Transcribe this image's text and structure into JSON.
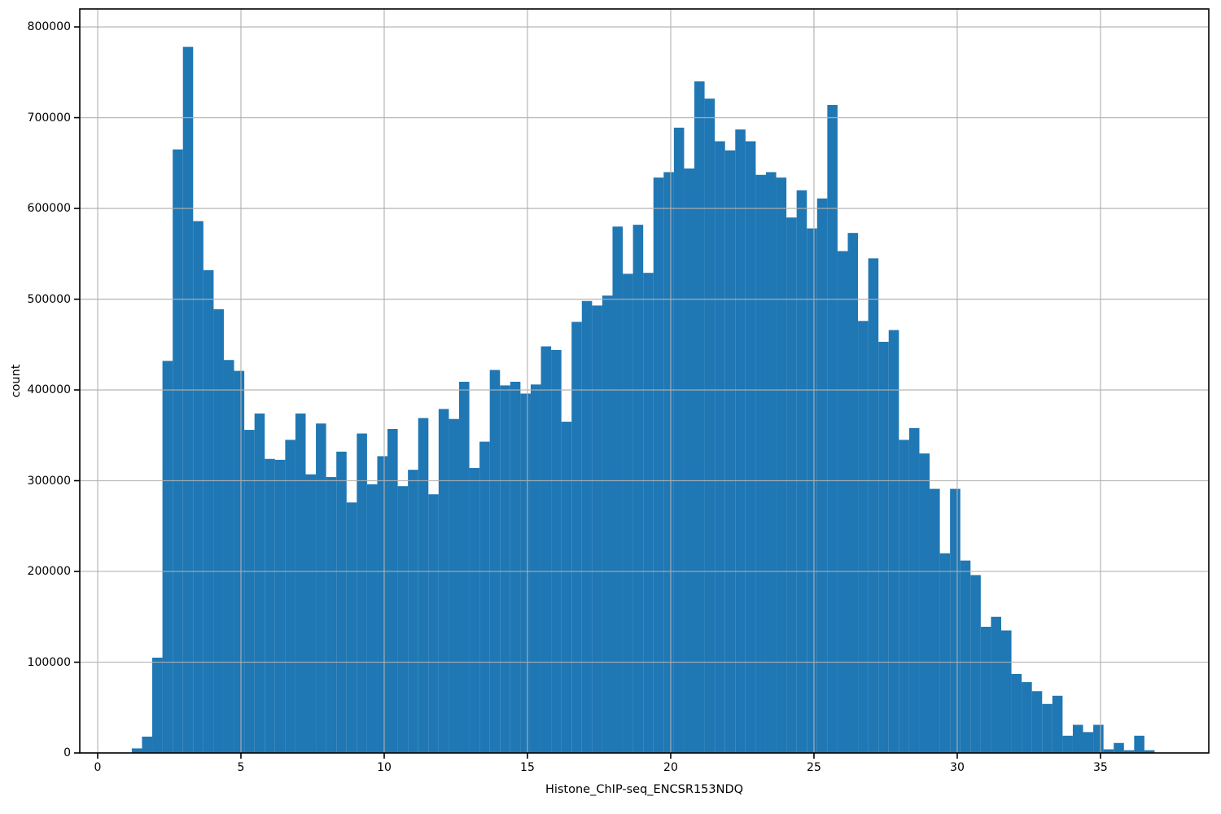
{
  "figure": {
    "background": "#ffffff"
  },
  "axes": {
    "x_tick_labels": [
      "0",
      "5",
      "10",
      "15",
      "20",
      "25",
      "30",
      "35"
    ],
    "x_tick_values": [
      0,
      5,
      10,
      15,
      20,
      25,
      30,
      35
    ],
    "y_tick_labels": [
      "0",
      "100000",
      "200000",
      "300000",
      "400000",
      "500000",
      "600000",
      "700000",
      "800000"
    ],
    "y_tick_values": [
      0,
      100000,
      200000,
      300000,
      400000,
      500000,
      600000,
      700000,
      800000
    ],
    "grid": true,
    "grid_color": "#b0b0b0",
    "spine_color": "#000000",
    "tick_color": "#000000"
  },
  "chart_data": {
    "type": "bar",
    "subtype": "histogram",
    "title": "",
    "xlabel": "Histone_ChIP-seq_ENCSR153NDQ",
    "ylabel": "count",
    "bar_color": "#1f77b4",
    "grid_on": true,
    "legend": "none",
    "xlim": [
      -0.625,
      38.78
    ],
    "ylim": [
      0,
      819800
    ],
    "bin_start": 1.19,
    "bin_width": 0.357,
    "counts": [
      5000,
      18000,
      105000,
      432000,
      665000,
      778000,
      586000,
      532000,
      489000,
      433000,
      421000,
      356000,
      374000,
      324000,
      323000,
      345000,
      374000,
      307000,
      363000,
      304000,
      332000,
      276000,
      352000,
      296000,
      327000,
      357000,
      294000,
      312000,
      369000,
      285000,
      379000,
      368000,
      409000,
      314000,
      343000,
      422000,
      405000,
      409000,
      396000,
      406000,
      448000,
      444000,
      365000,
      475000,
      498000,
      493000,
      504000,
      580000,
      528000,
      582000,
      529000,
      634000,
      640000,
      689000,
      644000,
      740000,
      721000,
      674000,
      664000,
      687000,
      674000,
      637000,
      640000,
      634000,
      590000,
      620000,
      578000,
      611000,
      714000,
      553000,
      573000,
      476000,
      545000,
      453000,
      466000,
      345000,
      358000,
      330000,
      291000,
      220000,
      291000,
      212000,
      196000,
      139000,
      150000,
      135000,
      87000,
      78000,
      68000,
      54000,
      63000,
      19000,
      31000,
      23000,
      31000,
      4000,
      11000,
      3000,
      19000,
      3000
    ]
  }
}
